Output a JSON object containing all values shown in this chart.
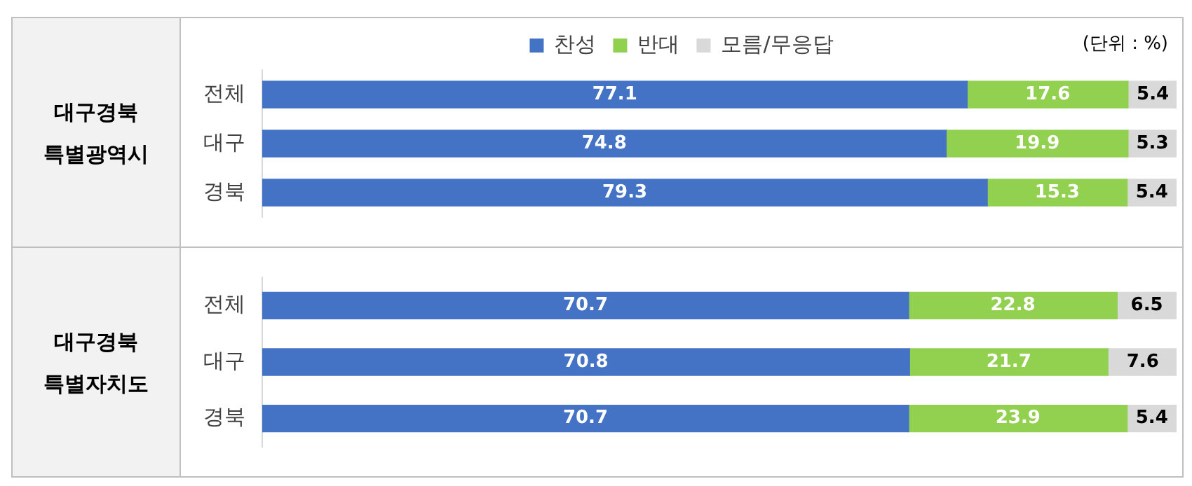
{
  "chart_data": [
    {
      "type": "bar",
      "orientation": "horizontal",
      "stacked": true,
      "title": "대구경북 특별광역시",
      "categories": [
        "전체",
        "대구",
        "경북"
      ],
      "xlim": [
        0,
        100
      ],
      "tick_labels": "y",
      "grid": false,
      "legend": "top",
      "data_labels": true,
      "annotations": [
        "(단위 : %)"
      ],
      "series": [
        {
          "name": "찬성",
          "color": "#4472c4",
          "values": [
            77.1,
            74.8,
            79.3
          ]
        },
        {
          "name": "반대",
          "color": "#92d050",
          "values": [
            17.6,
            19.9,
            15.3
          ]
        },
        {
          "name": "모름/무응답",
          "color": "#d9d9d9",
          "values": [
            5.4,
            5.3,
            5.4
          ]
        }
      ]
    },
    {
      "type": "bar",
      "orientation": "horizontal",
      "stacked": true,
      "title": "대구경북 특별자치도",
      "categories": [
        "전체",
        "대구",
        "경북"
      ],
      "xlim": [
        0,
        100
      ],
      "tick_labels": "y",
      "grid": false,
      "data_labels": true,
      "series": [
        {
          "color": "#4472c4",
          "values": [
            70.7,
            70.8,
            70.7
          ]
        },
        {
          "color": "#92d050",
          "values": [
            22.8,
            21.7,
            23.9
          ]
        },
        {
          "color": "#d9d9d9",
          "values": [
            6.5,
            7.6,
            5.4
          ]
        }
      ]
    }
  ]
}
